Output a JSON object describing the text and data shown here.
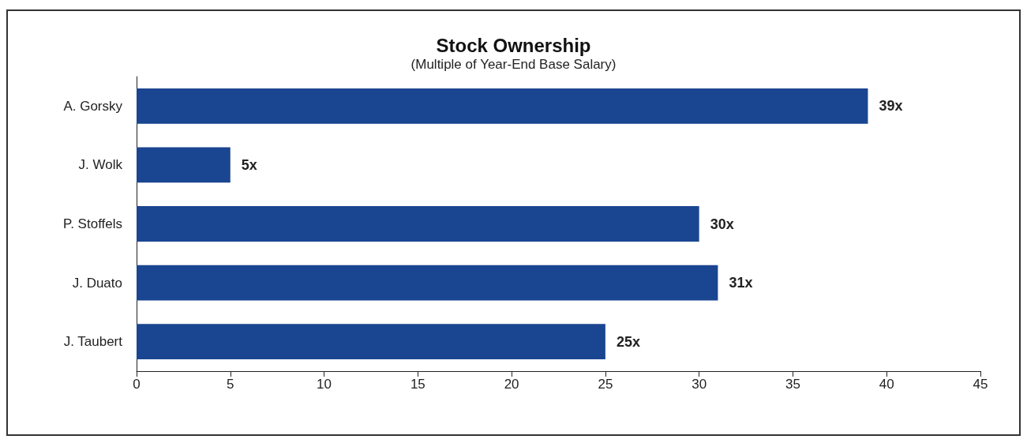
{
  "chart_data": {
    "type": "bar",
    "orientation": "horizontal",
    "title": "Stock Ownership",
    "subtitle": "(Multiple of Year-End Base Salary)",
    "categories": [
      "A. Gorsky",
      "J. Wolk",
      "P. Stoffels",
      "J. Duato",
      "J. Taubert"
    ],
    "values": [
      39,
      5,
      30,
      31,
      25
    ],
    "value_labels": [
      "39x",
      "5x",
      "30x",
      "31x",
      "25x"
    ],
    "color": "#1a4590",
    "xlim": [
      0,
      45
    ],
    "xticks": [
      0,
      5,
      10,
      15,
      20,
      25,
      30,
      35,
      40,
      45
    ],
    "grid": false
  }
}
